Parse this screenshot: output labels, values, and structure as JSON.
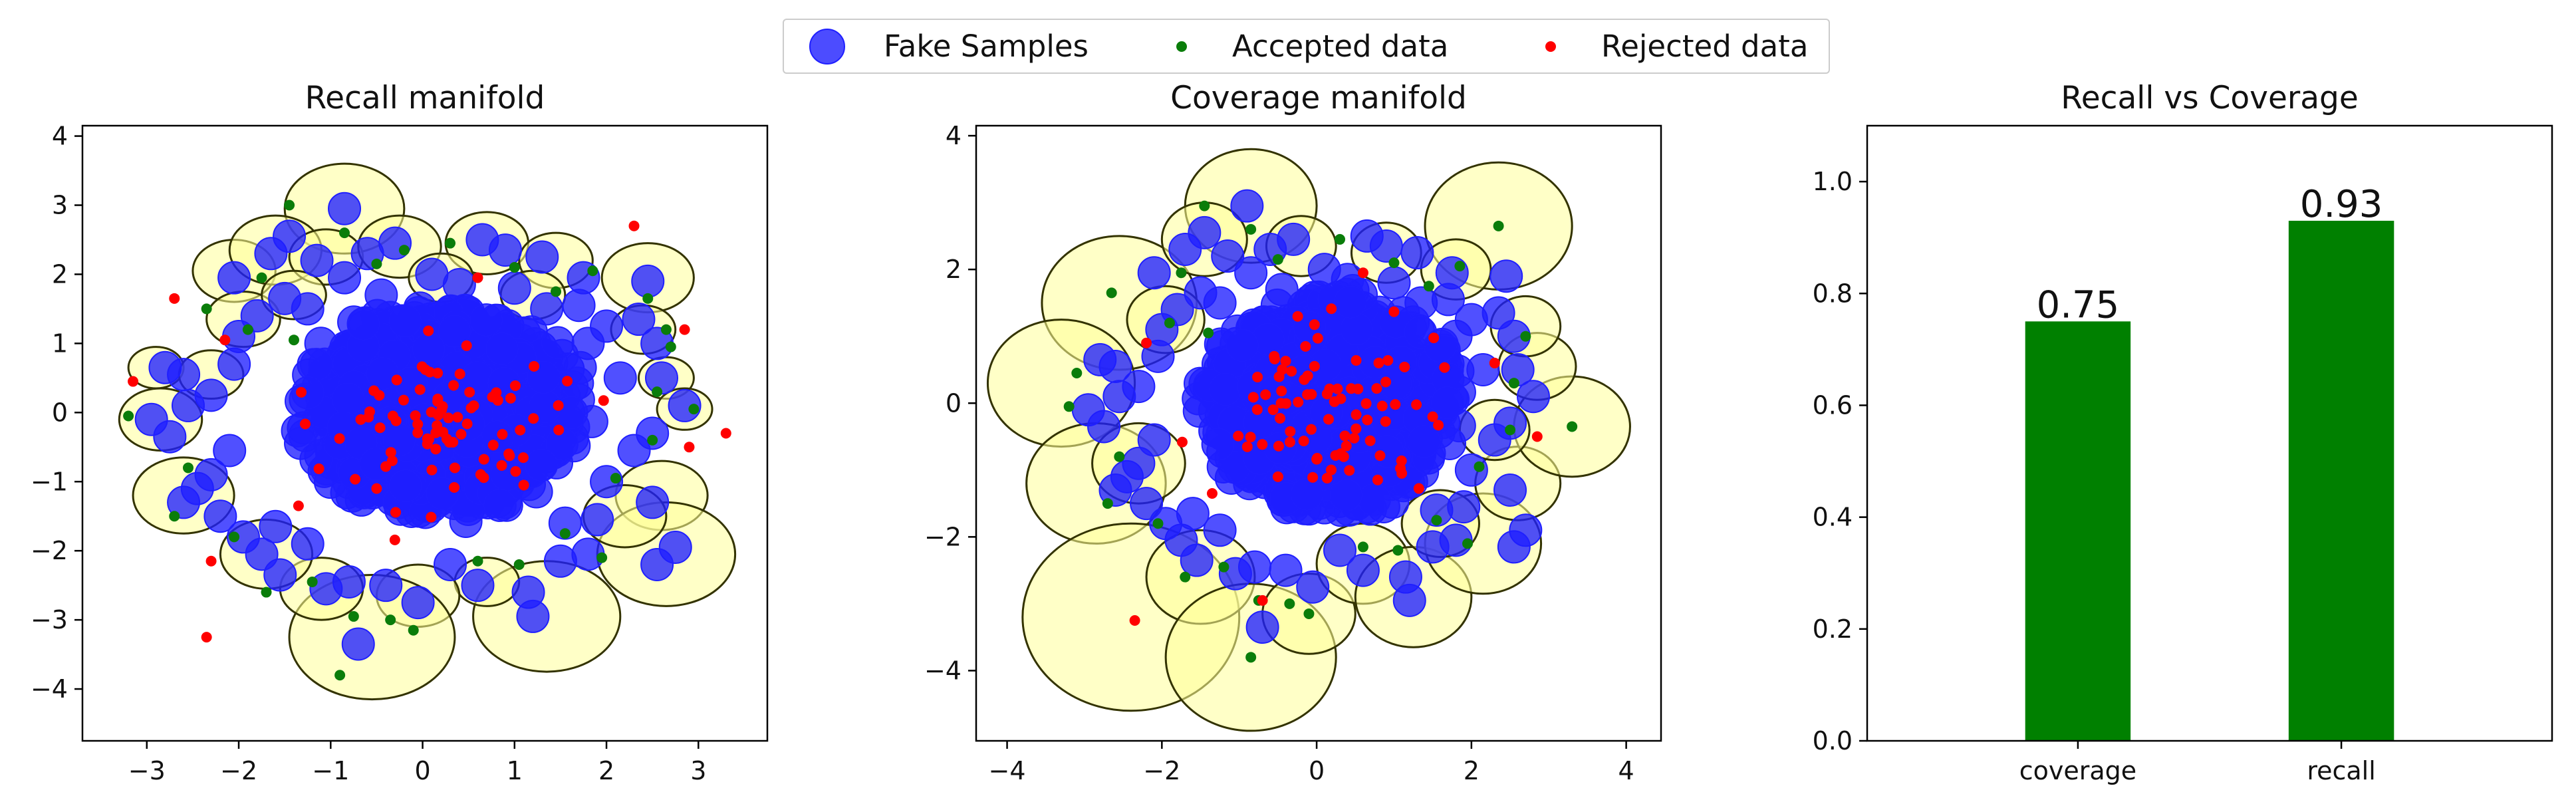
{
  "legend": {
    "fake": "Fake Samples",
    "accepted": "Accepted data",
    "rejected": "Rejected data"
  },
  "colors": {
    "fake": "#1f1fff",
    "accepted": "#0a7d0a",
    "rejected": "#ff0000",
    "ball_fill": "#ffff99",
    "ball_edge": "#333300",
    "bar": "#008000"
  },
  "chart_data": [
    {
      "type": "scatter",
      "title": "Recall manifold",
      "xlim": [
        -3.7,
        3.75
      ],
      "ylim": [
        -4.75,
        4.15
      ],
      "xticks": [
        -3,
        -2,
        -1,
        0,
        1,
        2,
        3
      ],
      "yticks": [
        -4,
        -3,
        -2,
        -1,
        0,
        1,
        2,
        3,
        4
      ],
      "fake_cluster": {
        "center": [
          0.2,
          0.0
        ],
        "radius": 1.45
      },
      "fake_samples": [
        [
          -0.85,
          2.95
        ],
        [
          -2.05,
          1.95
        ],
        [
          -1.65,
          2.3
        ],
        [
          -1.45,
          2.55
        ],
        [
          -1.15,
          2.2
        ],
        [
          -0.6,
          2.3
        ],
        [
          -0.3,
          2.45
        ],
        [
          0.65,
          2.5
        ],
        [
          0.9,
          2.35
        ],
        [
          1.3,
          2.25
        ],
        [
          1.75,
          1.95
        ],
        [
          2.45,
          1.9
        ],
        [
          1.7,
          1.55
        ],
        [
          2.0,
          1.25
        ],
        [
          2.35,
          1.35
        ],
        [
          2.55,
          1.0
        ],
        [
          2.15,
          0.5
        ],
        [
          2.6,
          0.5
        ],
        [
          2.85,
          0.1
        ],
        [
          2.5,
          -0.3
        ],
        [
          2.3,
          -0.55
        ],
        [
          2.0,
          -1.0
        ],
        [
          2.5,
          -1.3
        ],
        [
          2.75,
          -1.95
        ],
        [
          2.55,
          -2.2
        ],
        [
          1.8,
          -2.05
        ],
        [
          1.5,
          -2.15
        ],
        [
          1.15,
          -2.6
        ],
        [
          1.2,
          -2.95
        ],
        [
          0.6,
          -2.5
        ],
        [
          0.3,
          -2.2
        ],
        [
          -0.05,
          -2.75
        ],
        [
          -0.4,
          -2.5
        ],
        [
          -0.8,
          -2.45
        ],
        [
          -1.05,
          -2.55
        ],
        [
          -0.7,
          -3.35
        ],
        [
          -1.55,
          -2.35
        ],
        [
          -1.75,
          -2.05
        ],
        [
          -1.95,
          -1.8
        ],
        [
          -2.2,
          -1.5
        ],
        [
          -2.6,
          -1.3
        ],
        [
          -2.45,
          -1.1
        ],
        [
          -2.3,
          -0.9
        ],
        [
          -2.75,
          -0.35
        ],
        [
          -2.95,
          -0.1
        ],
        [
          -2.55,
          0.1
        ],
        [
          -2.3,
          0.25
        ],
        [
          -2.8,
          0.65
        ],
        [
          -2.6,
          0.55
        ],
        [
          -2.05,
          0.7
        ],
        [
          -2.0,
          1.1
        ],
        [
          -1.8,
          1.4
        ],
        [
          -1.5,
          1.65
        ],
        [
          -1.25,
          1.5
        ],
        [
          -0.85,
          1.95
        ],
        [
          -0.45,
          1.7
        ],
        [
          0.1,
          2.0
        ],
        [
          0.4,
          1.85
        ],
        [
          1.0,
          1.8
        ],
        [
          1.35,
          1.5
        ],
        [
          1.8,
          1.0
        ],
        [
          -1.6,
          -1.65
        ],
        [
          -1.25,
          -1.9
        ],
        [
          1.55,
          -1.6
        ],
        [
          1.9,
          -1.55
        ],
        [
          -2.1,
          -0.55
        ]
      ],
      "accepted_points": [
        [
          -3.2,
          -0.05
        ],
        [
          -2.7,
          -1.5
        ],
        [
          -1.45,
          3.0
        ],
        [
          -1.75,
          1.95
        ],
        [
          -0.85,
          2.6
        ],
        [
          -0.5,
          2.15
        ],
        [
          0.3,
          2.45
        ],
        [
          1.0,
          2.1
        ],
        [
          1.85,
          2.05
        ],
        [
          2.65,
          1.2
        ],
        [
          2.45,
          1.65
        ],
        [
          2.7,
          0.95
        ],
        [
          2.55,
          0.3
        ],
        [
          2.5,
          -0.4
        ],
        [
          2.1,
          -0.95
        ],
        [
          1.55,
          -1.75
        ],
        [
          1.05,
          -2.2
        ],
        [
          0.6,
          -2.15
        ],
        [
          -0.1,
          -3.15
        ],
        [
          -0.9,
          -3.8
        ],
        [
          -0.75,
          -2.95
        ],
        [
          -1.2,
          -2.45
        ],
        [
          -1.7,
          -2.6
        ],
        [
          -2.05,
          -1.8
        ],
        [
          -2.55,
          -0.8
        ],
        [
          -1.9,
          1.2
        ],
        [
          -1.4,
          1.05
        ],
        [
          2.95,
          0.05
        ],
        [
          -0.2,
          2.35
        ],
        [
          1.45,
          1.75
        ],
        [
          -2.35,
          1.5
        ],
        [
          1.95,
          -2.1
        ],
        [
          -0.35,
          -3.0
        ]
      ],
      "rejected_points": [
        [
          -3.15,
          0.45
        ],
        [
          -2.7,
          1.65
        ],
        [
          -2.15,
          1.05
        ],
        [
          -2.3,
          -2.15
        ],
        [
          -2.35,
          -3.25
        ],
        [
          2.3,
          2.7
        ],
        [
          2.85,
          1.2
        ],
        [
          3.3,
          -0.3
        ],
        [
          2.9,
          -0.5
        ],
        [
          1.1,
          -1.05
        ],
        [
          -0.5,
          -1.1
        ],
        [
          0.6,
          1.95
        ],
        [
          0.35,
          -0.8
        ],
        [
          -1.35,
          -1.35
        ]
      ],
      "balls": [
        [
          -0.85,
          2.95,
          0.65
        ],
        [
          -2.05,
          2.05,
          0.45
        ],
        [
          -1.6,
          2.35,
          0.5
        ],
        [
          -1.05,
          2.25,
          0.4
        ],
        [
          -0.25,
          2.4,
          0.45
        ],
        [
          0.7,
          2.45,
          0.45
        ],
        [
          1.45,
          2.2,
          0.4
        ],
        [
          2.45,
          1.95,
          0.5
        ],
        [
          2.4,
          1.2,
          0.35
        ],
        [
          2.65,
          0.5,
          0.3
        ],
        [
          2.85,
          0.05,
          0.3
        ],
        [
          2.6,
          -1.2,
          0.5
        ],
        [
          2.65,
          -2.05,
          0.75
        ],
        [
          2.2,
          -1.5,
          0.45
        ],
        [
          1.35,
          -2.95,
          0.8
        ],
        [
          0.7,
          -2.45,
          0.35
        ],
        [
          -0.05,
          -2.65,
          0.45
        ],
        [
          -0.55,
          -3.25,
          0.9
        ],
        [
          -1.1,
          -2.55,
          0.45
        ],
        [
          -1.7,
          -2.05,
          0.5
        ],
        [
          -2.6,
          -1.2,
          0.55
        ],
        [
          -2.85,
          -0.1,
          0.45
        ],
        [
          -2.9,
          0.65,
          0.3
        ],
        [
          -2.3,
          0.55,
          0.35
        ],
        [
          -1.95,
          1.35,
          0.4
        ],
        [
          -1.4,
          1.7,
          0.35
        ],
        [
          0.2,
          1.95,
          0.35
        ],
        [
          1.2,
          1.7,
          0.35
        ]
      ]
    },
    {
      "type": "scatter",
      "title": "Coverage manifold",
      "xlim": [
        -4.4,
        4.45
      ],
      "ylim": [
        -5.05,
        4.15
      ],
      "xticks": [
        -4,
        -2,
        0,
        2,
        4
      ],
      "yticks": [
        -4,
        -2,
        0,
        2,
        4
      ],
      "fake_cluster": {
        "center": [
          0.15,
          0.0
        ],
        "radius": 1.55
      },
      "fake_samples": [
        [
          -0.9,
          2.95
        ],
        [
          -2.1,
          1.95
        ],
        [
          -1.7,
          2.3
        ],
        [
          -1.45,
          2.55
        ],
        [
          -1.15,
          2.2
        ],
        [
          -0.6,
          2.3
        ],
        [
          -0.3,
          2.45
        ],
        [
          0.65,
          2.5
        ],
        [
          0.9,
          2.35
        ],
        [
          1.3,
          2.25
        ],
        [
          1.75,
          1.95
        ],
        [
          2.45,
          1.9
        ],
        [
          1.7,
          1.55
        ],
        [
          2.0,
          1.25
        ],
        [
          2.35,
          1.35
        ],
        [
          2.55,
          1.0
        ],
        [
          2.15,
          0.5
        ],
        [
          2.6,
          0.5
        ],
        [
          2.8,
          0.1
        ],
        [
          2.5,
          -0.3
        ],
        [
          2.3,
          -0.55
        ],
        [
          2.0,
          -1.0
        ],
        [
          2.5,
          -1.3
        ],
        [
          2.7,
          -1.9
        ],
        [
          2.55,
          -2.15
        ],
        [
          1.8,
          -2.05
        ],
        [
          1.5,
          -2.15
        ],
        [
          1.15,
          -2.6
        ],
        [
          1.2,
          -2.95
        ],
        [
          0.6,
          -2.5
        ],
        [
          0.3,
          -2.2
        ],
        [
          -0.05,
          -2.75
        ],
        [
          -0.4,
          -2.5
        ],
        [
          -0.8,
          -2.45
        ],
        [
          -1.05,
          -2.55
        ],
        [
          -0.7,
          -3.35
        ],
        [
          -1.55,
          -2.35
        ],
        [
          -1.75,
          -2.05
        ],
        [
          -1.95,
          -1.8
        ],
        [
          -2.2,
          -1.5
        ],
        [
          -2.6,
          -1.3
        ],
        [
          -2.45,
          -1.1
        ],
        [
          -2.3,
          -0.9
        ],
        [
          -2.75,
          -0.35
        ],
        [
          -2.95,
          -0.1
        ],
        [
          -2.55,
          0.1
        ],
        [
          -2.3,
          0.25
        ],
        [
          -2.8,
          0.65
        ],
        [
          -2.6,
          0.55
        ],
        [
          -2.05,
          0.7
        ],
        [
          -2.0,
          1.1
        ],
        [
          -1.8,
          1.4
        ],
        [
          -1.5,
          1.65
        ],
        [
          -1.25,
          1.5
        ],
        [
          -0.85,
          1.95
        ],
        [
          -0.45,
          1.7
        ],
        [
          0.1,
          2.0
        ],
        [
          0.4,
          1.85
        ],
        [
          1.0,
          1.8
        ],
        [
          1.35,
          1.5
        ],
        [
          1.8,
          1.0
        ],
        [
          -1.6,
          -1.65
        ],
        [
          -1.25,
          -1.9
        ],
        [
          1.55,
          -1.6
        ],
        [
          1.9,
          -1.55
        ],
        [
          -2.1,
          -0.55
        ]
      ],
      "accepted_points": [
        [
          -3.2,
          -0.05
        ],
        [
          -2.7,
          -1.5
        ],
        [
          -1.45,
          2.95
        ],
        [
          -1.75,
          1.95
        ],
        [
          -0.85,
          2.6
        ],
        [
          -0.5,
          2.15
        ],
        [
          0.3,
          2.45
        ],
        [
          1.0,
          2.1
        ],
        [
          1.85,
          2.05
        ],
        [
          2.35,
          2.65
        ],
        [
          2.7,
          1.0
        ],
        [
          2.55,
          0.3
        ],
        [
          2.5,
          -0.4
        ],
        [
          2.1,
          -0.95
        ],
        [
          1.55,
          -1.75
        ],
        [
          1.05,
          -2.2
        ],
        [
          0.6,
          -2.15
        ],
        [
          -0.1,
          -3.15
        ],
        [
          -0.85,
          -3.8
        ],
        [
          -0.75,
          -2.95
        ],
        [
          -1.2,
          -2.45
        ],
        [
          -1.7,
          -2.6
        ],
        [
          -2.05,
          -1.8
        ],
        [
          -2.55,
          -0.8
        ],
        [
          -1.9,
          1.2
        ],
        [
          -1.4,
          1.05
        ],
        [
          3.3,
          -0.35
        ],
        [
          -2.65,
          1.65
        ],
        [
          -3.1,
          0.45
        ],
        [
          1.45,
          1.75
        ],
        [
          1.95,
          -2.1
        ],
        [
          -0.35,
          -3.0
        ]
      ],
      "rejected_points": [
        [
          -2.35,
          -3.25
        ],
        [
          2.85,
          -0.5
        ],
        [
          -0.7,
          -2.95
        ],
        [
          1.1,
          -1.05
        ],
        [
          -0.5,
          -1.1
        ],
        [
          0.6,
          1.95
        ],
        [
          0.35,
          -0.8
        ],
        [
          -1.35,
          -1.35
        ],
        [
          -2.2,
          0.9
        ],
        [
          2.3,
          0.6
        ]
      ],
      "balls": [
        [
          -0.85,
          2.95,
          0.85
        ],
        [
          -2.55,
          1.5,
          1.0
        ],
        [
          -3.3,
          0.3,
          0.95
        ],
        [
          -2.85,
          -1.2,
          0.9
        ],
        [
          -2.4,
          -3.2,
          1.4
        ],
        [
          -1.5,
          -2.6,
          0.7
        ],
        [
          -0.85,
          -3.8,
          1.1
        ],
        [
          -0.1,
          -3.15,
          0.6
        ],
        [
          0.6,
          -2.4,
          0.6
        ],
        [
          1.25,
          -2.9,
          0.75
        ],
        [
          2.15,
          -2.1,
          0.75
        ],
        [
          2.6,
          -1.2,
          0.55
        ],
        [
          3.3,
          -0.35,
          0.75
        ],
        [
          2.85,
          0.55,
          0.5
        ],
        [
          2.35,
          2.65,
          0.95
        ],
        [
          2.7,
          1.15,
          0.45
        ],
        [
          1.8,
          2.0,
          0.45
        ],
        [
          0.9,
          2.25,
          0.45
        ],
        [
          -0.2,
          2.35,
          0.45
        ],
        [
          -1.45,
          2.45,
          0.55
        ],
        [
          -1.95,
          1.25,
          0.5
        ],
        [
          -2.3,
          -0.9,
          0.6
        ],
        [
          1.6,
          -1.8,
          0.5
        ],
        [
          2.3,
          -0.4,
          0.45
        ]
      ]
    },
    {
      "type": "bar",
      "title": "Recall vs Coverage",
      "categories": [
        "coverage",
        "recall"
      ],
      "values": [
        0.75,
        0.93
      ],
      "value_labels": [
        "0.75",
        "0.93"
      ],
      "ylim": [
        0.0,
        1.1
      ],
      "yticks": [
        "0.0",
        "0.2",
        "0.4",
        "0.6",
        "0.8",
        "1.0"
      ],
      "color": "#008000"
    }
  ]
}
